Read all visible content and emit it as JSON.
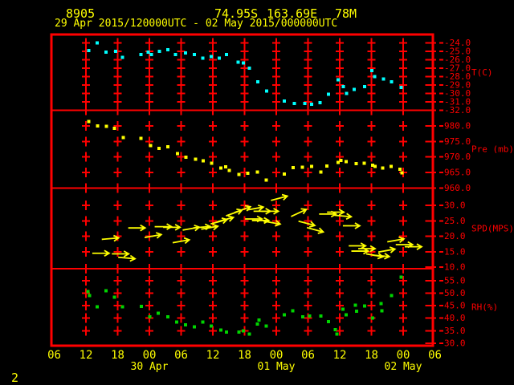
{
  "page_number": "2",
  "header": {
    "station_id": "8905",
    "latitude": "74.95S",
    "longitude": "163.69E",
    "elevation": "78M",
    "time_range": "29 Apr 2015/120000UTC - 02 May 2015/000000UTC"
  },
  "colors": {
    "background": "#000000",
    "axis_red": "#ff0000",
    "text_yellow": "#ffff00",
    "temperature": "#00ffff",
    "pressure": "#ffff00",
    "wind": "#ffff00",
    "humidity": "#00d400"
  },
  "x_axis": {
    "hours_span": 72,
    "axis_origin_label": "06",
    "grid_hours": [
      6,
      12,
      18,
      24,
      30,
      36,
      42,
      48,
      54,
      60,
      66
    ],
    "hour_ticks": [
      {
        "t": 0,
        "label": "06"
      },
      {
        "t": 6,
        "label": "12"
      },
      {
        "t": 12,
        "label": "18"
      },
      {
        "t": 18,
        "label": "00"
      },
      {
        "t": 24,
        "label": "06"
      },
      {
        "t": 30,
        "label": "12"
      },
      {
        "t": 36,
        "label": "18"
      },
      {
        "t": 42,
        "label": "00"
      },
      {
        "t": 48,
        "label": "06"
      },
      {
        "t": 54,
        "label": "12"
      },
      {
        "t": 60,
        "label": "18"
      },
      {
        "t": 66,
        "label": "00"
      },
      {
        "t": 72,
        "label": "06"
      }
    ],
    "date_ticks": [
      {
        "t": 18,
        "label": "30 Apr"
      },
      {
        "t": 42,
        "label": "01 May"
      },
      {
        "t": 66,
        "label": "02 May"
      }
    ]
  },
  "chart_data": [
    {
      "type": "scatter",
      "name": "temperature",
      "unit_label": "T(C)",
      "color": "#00ffff",
      "ylim": [
        -32.0,
        -23.0
      ],
      "tick_labels": [
        "-24.0",
        "-25.0",
        "-26.0",
        "-27.0",
        "-28.0",
        "-29.0",
        "-30.0",
        "-31.0",
        "-32.0"
      ],
      "tick_values": [
        -24,
        -25,
        -26,
        -27,
        -28,
        -29,
        -30,
        -31,
        -32
      ],
      "grid_values": [
        -24,
        -25,
        -26,
        -27,
        -28,
        -29,
        -30,
        -31
      ],
      "point_format": "[hours_after_first_06UTC_tick, deg_C]",
      "points": [
        [
          6.5,
          -24.9
        ],
        [
          8.1,
          -24.0
        ],
        [
          9.8,
          -25.1
        ],
        [
          11.6,
          -25.0
        ],
        [
          12.9,
          -25.7
        ],
        [
          16.4,
          -25.4
        ],
        [
          17.8,
          -25.1
        ],
        [
          18.4,
          -25.4
        ],
        [
          19.9,
          -25.0
        ],
        [
          21.5,
          -24.8
        ],
        [
          22.9,
          -25.4
        ],
        [
          24.8,
          -25.2
        ],
        [
          26.5,
          -25.4
        ],
        [
          28.1,
          -25.8
        ],
        [
          29.7,
          -25.6
        ],
        [
          31.2,
          -25.8
        ],
        [
          32.6,
          -25.4
        ],
        [
          34.8,
          -26.3
        ],
        [
          35.8,
          -26.4
        ],
        [
          36.9,
          -27.0
        ],
        [
          38.5,
          -28.6
        ],
        [
          40.2,
          -29.7
        ],
        [
          43.5,
          -30.9
        ],
        [
          45.4,
          -31.2
        ],
        [
          47.4,
          -31.2
        ],
        [
          48.7,
          -31.3
        ],
        [
          50.3,
          -31.1
        ],
        [
          51.9,
          -30.1
        ],
        [
          53.7,
          -28.4
        ],
        [
          54.7,
          -29.2
        ],
        [
          55.3,
          -30.0
        ],
        [
          56.7,
          -29.5
        ],
        [
          58.7,
          -29.2
        ],
        [
          60.1,
          -27.3
        ],
        [
          60.6,
          -28.0
        ],
        [
          62.3,
          -28.3
        ],
        [
          63.8,
          -28.6
        ],
        [
          65.6,
          -29.3
        ]
      ]
    },
    {
      "type": "scatter",
      "name": "pressure",
      "unit_label": "Pre (mb)",
      "color": "#ffff00",
      "ylim": [
        960.0,
        985.0
      ],
      "tick_labels": [
        "980.0",
        "975.0",
        "970.0",
        "965.0",
        "960.0"
      ],
      "tick_values": [
        980,
        975,
        970,
        965,
        960
      ],
      "grid_values": [
        980,
        975,
        970,
        965
      ],
      "point_format": "[hours_after_first_06UTC_tick, mb]",
      "points": [
        [
          6.5,
          981.4
        ],
        [
          8.2,
          980.0
        ],
        [
          9.9,
          979.9
        ],
        [
          11.4,
          979.2
        ],
        [
          13.1,
          976.2
        ],
        [
          16.4,
          976.0
        ],
        [
          18.2,
          973.6
        ],
        [
          19.8,
          972.8
        ],
        [
          21.5,
          973.3
        ],
        [
          23.3,
          971.1
        ],
        [
          24.9,
          969.9
        ],
        [
          26.7,
          969.3
        ],
        [
          28.2,
          968.8
        ],
        [
          29.8,
          968.0
        ],
        [
          31.5,
          966.5
        ],
        [
          32.4,
          966.8
        ],
        [
          33.1,
          965.7
        ],
        [
          34.9,
          964.4
        ],
        [
          36.6,
          964.8
        ],
        [
          38.4,
          965.1
        ],
        [
          40.1,
          962.6
        ],
        [
          43.5,
          964.5
        ],
        [
          45.2,
          966.6
        ],
        [
          46.9,
          966.7
        ],
        [
          48.7,
          967.0
        ],
        [
          50.4,
          965.1
        ],
        [
          51.6,
          967.1
        ],
        [
          53.7,
          968.2
        ],
        [
          54.2,
          968.9
        ],
        [
          55.2,
          968.5
        ],
        [
          57.1,
          967.8
        ],
        [
          58.6,
          968.0
        ],
        [
          60.2,
          967.4
        ],
        [
          60.7,
          967.0
        ],
        [
          62.1,
          966.5
        ],
        [
          63.7,
          967.0
        ],
        [
          65.4,
          966.1
        ],
        [
          65.8,
          964.9
        ]
      ]
    },
    {
      "type": "quiver",
      "name": "wind-speed",
      "unit_label": "SPD(MPS)",
      "color": "#ffff00",
      "ylim": [
        9.5,
        35.6
      ],
      "tick_labels": [
        "30.0",
        "25.0",
        "20.0",
        "15.0",
        "10.0"
      ],
      "tick_values": [
        30,
        25,
        20,
        15,
        10
      ],
      "grid_values": [
        30,
        25,
        20,
        15
      ],
      "point_format": "[hours_after_first_06UTC_tick, mps, arrow_angle_deg_up_from_east]",
      "points": [
        [
          7.2,
          14.5,
          0
        ],
        [
          9.0,
          19.0,
          5
        ],
        [
          10.9,
          14.3,
          0
        ],
        [
          12.1,
          13.2,
          -5
        ],
        [
          14.0,
          22.7,
          0
        ],
        [
          17.1,
          19.6,
          10
        ],
        [
          19.0,
          23.1,
          0
        ],
        [
          20.6,
          22.9,
          0
        ],
        [
          22.4,
          17.9,
          10
        ],
        [
          24.3,
          22.0,
          10
        ],
        [
          26.3,
          22.7,
          5
        ],
        [
          27.8,
          22.3,
          10
        ],
        [
          29.6,
          24.0,
          15
        ],
        [
          30.8,
          24.7,
          15
        ],
        [
          32.5,
          26.6,
          20
        ],
        [
          34.1,
          27.7,
          20
        ],
        [
          36.1,
          25.6,
          0
        ],
        [
          36.4,
          28.5,
          10
        ],
        [
          37.4,
          25.1,
          0
        ],
        [
          37.7,
          28.1,
          0
        ],
        [
          39.2,
          28.1,
          0
        ],
        [
          39.6,
          24.9,
          -10
        ],
        [
          41.0,
          31.6,
          15
        ],
        [
          44.8,
          26.4,
          25
        ],
        [
          46.2,
          24.9,
          -15
        ],
        [
          47.8,
          22.8,
          -15
        ],
        [
          50.1,
          27.2,
          0
        ],
        [
          51.6,
          27.8,
          0
        ],
        [
          53.0,
          26.8,
          -5
        ],
        [
          54.6,
          23.4,
          0
        ],
        [
          55.7,
          16.9,
          0
        ],
        [
          56.2,
          15.2,
          0
        ],
        [
          57.5,
          16.0,
          0
        ],
        [
          59.0,
          14.3,
          -10
        ],
        [
          60.2,
          13.9,
          -5
        ],
        [
          61.3,
          14.9,
          10
        ],
        [
          63.0,
          18.2,
          10
        ],
        [
          64.6,
          17.3,
          0
        ],
        [
          66.3,
          16.6,
          0
        ]
      ]
    },
    {
      "type": "scatter",
      "name": "relative-humidity",
      "unit_label": "RH(%)",
      "color": "#00d400",
      "ylim": [
        29.0,
        59.8
      ],
      "tick_labels": [
        "55.0",
        "50.0",
        "45.0",
        "40.0",
        "35.0",
        "30.0"
      ],
      "tick_values": [
        55,
        50,
        45,
        40,
        35,
        30
      ],
      "grid_values": [
        55,
        50,
        45,
        40,
        35
      ],
      "point_format": "[hours_after_first_06UTC_tick, percent]",
      "points": [
        [
          6.4,
          50.7
        ],
        [
          6.7,
          49.1
        ],
        [
          8.1,
          44.6
        ],
        [
          9.8,
          50.9
        ],
        [
          11.4,
          48.4
        ],
        [
          12.9,
          44.6
        ],
        [
          16.5,
          44.8
        ],
        [
          18.1,
          40.6
        ],
        [
          19.7,
          42.0
        ],
        [
          21.5,
          40.6
        ],
        [
          23.2,
          38.4
        ],
        [
          24.8,
          37.4
        ],
        [
          26.5,
          36.5
        ],
        [
          28.1,
          38.4
        ],
        [
          29.7,
          36.8
        ],
        [
          31.5,
          35.2
        ],
        [
          32.6,
          34.4
        ],
        [
          34.9,
          34.4
        ],
        [
          35.8,
          35.0
        ],
        [
          36.9,
          33.6
        ],
        [
          38.4,
          37.7
        ],
        [
          38.7,
          39.2
        ],
        [
          40.1,
          36.8
        ],
        [
          43.5,
          41.4
        ],
        [
          45.1,
          43.0
        ],
        [
          47.0,
          40.6
        ],
        [
          48.3,
          40.8
        ],
        [
          50.4,
          40.8
        ],
        [
          51.9,
          38.7
        ],
        [
          53.2,
          35.4
        ],
        [
          53.5,
          33.6
        ],
        [
          54.6,
          43.6
        ],
        [
          55.2,
          41.4
        ],
        [
          57.0,
          45.2
        ],
        [
          57.2,
          42.8
        ],
        [
          58.7,
          44.9
        ],
        [
          60.2,
          40.0
        ],
        [
          61.8,
          45.9
        ],
        [
          62.0,
          43.0
        ],
        [
          63.8,
          49.1
        ],
        [
          65.6,
          56.4
        ]
      ]
    }
  ]
}
